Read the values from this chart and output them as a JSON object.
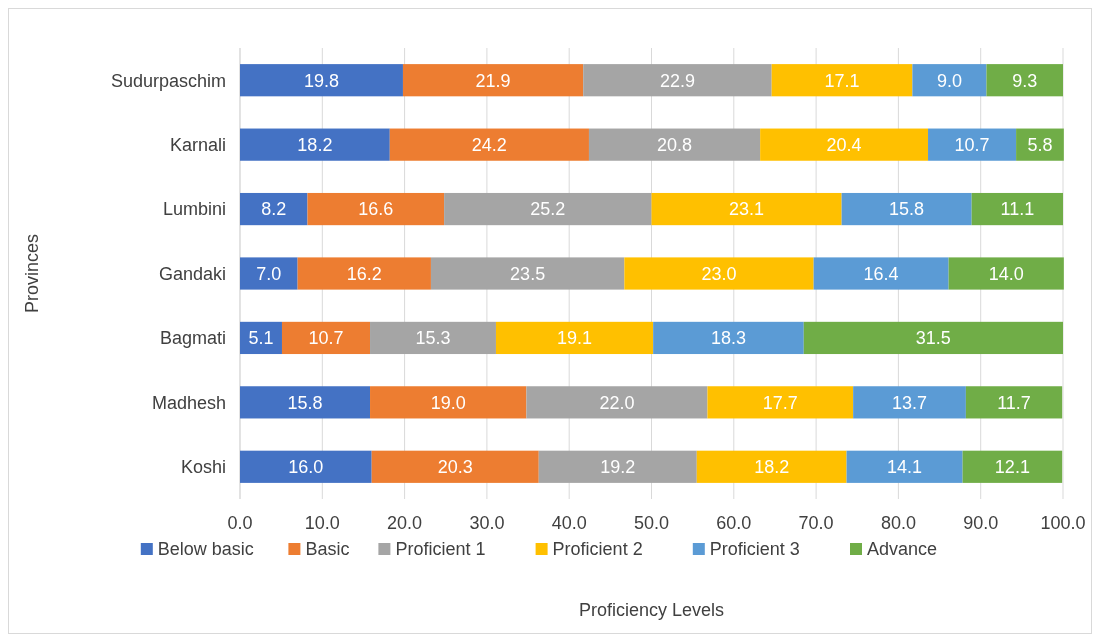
{
  "chart_data": {
    "type": "bar",
    "orientation": "horizontal",
    "stacked": true,
    "xlabel": "Proficiency Levels",
    "ylabel": "Provinces",
    "categories": [
      "Sudurpaschim",
      "Karnali",
      "Lumbini",
      "Gandaki",
      "Bagmati",
      "Madhesh",
      "Koshi"
    ],
    "series": [
      {
        "name": "Below basic",
        "color": "#4472c4",
        "values": [
          19.8,
          18.2,
          8.2,
          7.0,
          5.1,
          15.8,
          16.0
        ],
        "value_labels": [
          "19.8",
          "18.2",
          "8.2",
          "7.0",
          "5.1",
          "15.8",
          "16.0"
        ]
      },
      {
        "name": "Basic",
        "color": "#ed7d31",
        "values": [
          21.9,
          24.2,
          16.6,
          16.2,
          10.7,
          19.0,
          20.3
        ],
        "value_labels": [
          "21.9",
          "24.2",
          "16.6",
          "16.2",
          "10.7",
          "19.0",
          "20.3"
        ]
      },
      {
        "name": "Proficient 1",
        "color": "#a5a5a5",
        "values": [
          22.9,
          20.8,
          25.2,
          23.5,
          15.3,
          22.0,
          19.2
        ],
        "value_labels": [
          "22.9",
          "20.8",
          "25.2",
          "23.5",
          "15.3",
          "22.0",
          "19.2"
        ]
      },
      {
        "name": "Proficient 2",
        "color": "#ffc000",
        "values": [
          17.1,
          20.4,
          23.1,
          23.0,
          19.1,
          17.7,
          18.2
        ],
        "value_labels": [
          "17.1",
          "20.4",
          "23.1",
          "23.0",
          "19.1",
          "17.7",
          "18.2"
        ]
      },
      {
        "name": "Proficient 3",
        "color": "#5b9bd5",
        "values": [
          9.0,
          10.7,
          15.8,
          16.4,
          18.3,
          13.7,
          14.1
        ],
        "value_labels": [
          "9.0",
          "10.7",
          "15.8",
          "16.4",
          "18.3",
          "13.7",
          "14.1"
        ]
      },
      {
        "name": "Advance",
        "color": "#70ad47",
        "values": [
          9.3,
          5.8,
          11.1,
          14.0,
          31.5,
          11.7,
          12.1
        ],
        "value_labels": [
          "9.3",
          "5.8",
          "11.1",
          "14.0",
          "31.5",
          "11.7",
          "12.1"
        ]
      }
    ],
    "xlim": [
      0,
      100
    ],
    "xticks": [
      {
        "value": 0,
        "label": "0.0"
      },
      {
        "value": 10,
        "label": "10.0"
      },
      {
        "value": 20,
        "label": "20.0"
      },
      {
        "value": 30,
        "label": "30.0"
      },
      {
        "value": 40,
        "label": "40.0"
      },
      {
        "value": 50,
        "label": "50.0"
      },
      {
        "value": 60,
        "label": "60.0"
      },
      {
        "value": 70,
        "label": "70.0"
      },
      {
        "value": 80,
        "label": "80.0"
      },
      {
        "value": 90,
        "label": "90.0"
      },
      {
        "value": 100,
        "label": "100.0"
      }
    ],
    "grid": "x",
    "legend": "bottom"
  }
}
